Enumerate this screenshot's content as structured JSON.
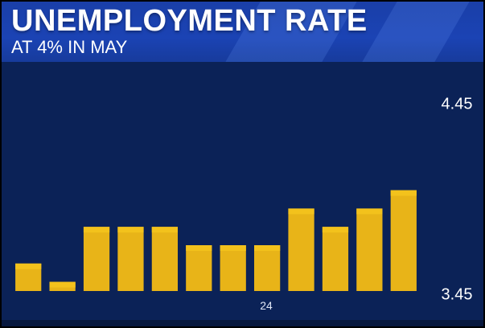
{
  "header": {
    "title": "UNEMPLOYMENT RATE",
    "subtitle": "AT 4% IN MAY"
  },
  "colors": {
    "background": "#0b2257",
    "header": "#1b43b4",
    "bar": "#e8b418",
    "bar_cap": "#f3c21c",
    "text": "#ffffff",
    "axis": "#dfe6f5"
  },
  "chart_data": {
    "type": "bar",
    "title": "UNEMPLOYMENT RATE",
    "subtitle": "AT 4% IN MAY",
    "x_tick_labels": [
      "24"
    ],
    "values": [
      3.6,
      3.5,
      3.8,
      3.8,
      3.8,
      3.7,
      3.7,
      3.7,
      3.9,
      3.8,
      3.9,
      4.0
    ],
    "ylim": [
      3.45,
      4.45
    ],
    "y_tick_labels": [
      "4.45",
      "3.45"
    ],
    "grid": false,
    "legend": "none"
  }
}
